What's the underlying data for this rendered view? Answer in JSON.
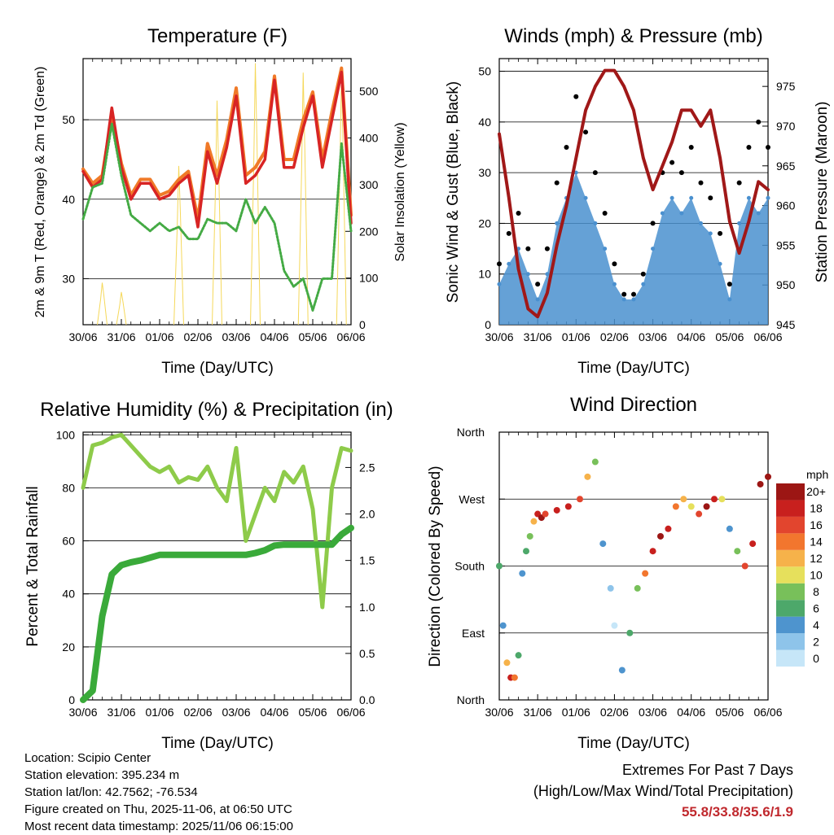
{
  "x_ticks": [
    "30/06",
    "31/06",
    "01/06",
    "02/06",
    "03/06",
    "04/06",
    "05/06",
    "06/06"
  ],
  "x_label": "Time (Day/UTC)",
  "colors": {
    "temp_2m": "#d82424",
    "temp_9m": "#f07a28",
    "dewpoint": "#44aa44",
    "solar": "#f5d85a",
    "wind": "#4a90cf",
    "gust": "#000000",
    "pressure": "#a01818",
    "rh": "#8ecb4a",
    "precip": "#3aaa3a",
    "extremes": "#c0282d"
  },
  "chart_data": [
    {
      "type": "line",
      "title": "Temperature (F)",
      "ylabel": "2m & 9m T (Red, Orange) & 2m Td (Green)",
      "y2label": "Solar Insolation (Yellow)",
      "ylim": [
        24.2,
        57.7
      ],
      "yticks": [
        30,
        40,
        50
      ],
      "y2lim": [
        0,
        570
      ],
      "y2ticks": [
        0,
        100,
        200,
        300,
        400,
        500
      ],
      "x": [
        0,
        0.25,
        0.5,
        0.75,
        1,
        1.25,
        1.5,
        1.75,
        2,
        2.25,
        2.5,
        2.75,
        3,
        3.25,
        3.5,
        3.75,
        4,
        4.25,
        4.5,
        4.75,
        5,
        5.25,
        5.5,
        5.75,
        6,
        6.25,
        6.5,
        6.75,
        7
      ],
      "series": [
        {
          "name": "2m T",
          "axis": "left",
          "values": [
            43.5,
            41.5,
            42.5,
            51.5,
            44,
            40,
            42,
            42,
            40,
            40.5,
            42,
            43,
            36.5,
            46,
            42,
            46.5,
            53,
            42,
            43,
            45,
            55,
            44,
            44,
            49,
            53,
            44,
            50,
            56,
            37
          ]
        },
        {
          "name": "9m T",
          "axis": "left",
          "values": [
            43.8,
            42,
            43,
            50.5,
            44.5,
            40.5,
            42.5,
            42.5,
            40.5,
            41,
            42.5,
            43.5,
            37.5,
            47,
            43,
            47.5,
            54,
            43,
            44,
            46,
            55.5,
            45,
            45,
            50,
            53.5,
            45,
            51,
            56.5,
            38
          ]
        },
        {
          "name": "2m Td",
          "axis": "left",
          "values": [
            37.5,
            41.5,
            42,
            49.5,
            43,
            38,
            37,
            36,
            37,
            36,
            36.5,
            35,
            35,
            37.5,
            37,
            37,
            36,
            40,
            37,
            39,
            37,
            31,
            29,
            30,
            26,
            30,
            30,
            47,
            36
          ]
        },
        {
          "name": "Solar Insolation",
          "axis": "right",
          "values": [
            0,
            0,
            90,
            0,
            70,
            0,
            0,
            0,
            0,
            0,
            340,
            0,
            0,
            0,
            480,
            0,
            0,
            0,
            560,
            0,
            0,
            0,
            0,
            540,
            0,
            0,
            0,
            540,
            0
          ]
        }
      ]
    },
    {
      "type": "line",
      "title": "Winds (mph) & Pressure (mb)",
      "ylabel": "Sonic Wind & Gust (Blue, Black)",
      "y2label": "Station Pressure (Maroon)",
      "ylim": [
        0,
        52.5
      ],
      "yticks": [
        0,
        10,
        20,
        30,
        40,
        50
      ],
      "y2lim": [
        945,
        978.5
      ],
      "y2ticks": [
        945,
        950,
        955,
        960,
        965,
        970,
        975
      ],
      "x": [
        0,
        0.25,
        0.5,
        0.75,
        1,
        1.25,
        1.5,
        1.75,
        2,
        2.25,
        2.5,
        2.75,
        3,
        3.25,
        3.5,
        3.75,
        4,
        4.25,
        4.5,
        4.75,
        5,
        5.25,
        5.5,
        5.75,
        6,
        6.25,
        6.5,
        6.75,
        7
      ],
      "series": [
        {
          "name": "Sonic Wind",
          "axis": "left",
          "values": [
            8,
            12,
            15,
            10,
            5,
            10,
            20,
            25,
            30,
            25,
            20,
            15,
            8,
            5,
            5,
            8,
            15,
            22,
            25,
            22,
            25,
            20,
            18,
            12,
            5,
            20,
            25,
            22,
            25
          ]
        },
        {
          "name": "Gust",
          "axis": "left",
          "values": [
            12,
            18,
            22,
            15,
            8,
            15,
            28,
            35,
            45,
            38,
            30,
            22,
            12,
            6,
            6,
            10,
            20,
            30,
            32,
            30,
            35,
            28,
            25,
            18,
            8,
            28,
            35,
            40,
            35
          ]
        },
        {
          "name": "Station Pressure",
          "axis": "right",
          "values": [
            969,
            961,
            952,
            947,
            946,
            949,
            955,
            960,
            966,
            972,
            975,
            977,
            977,
            975,
            972,
            966,
            962,
            965,
            968,
            972,
            972,
            970,
            972,
            966,
            958,
            954,
            958,
            963,
            962
          ]
        }
      ]
    },
    {
      "type": "line",
      "title": "Relative Humidity (%) & Precipitation (in)",
      "ylabel": "Percent & Total Rainfall",
      "ylim": [
        0,
        101
      ],
      "yticks": [
        0,
        20,
        40,
        60,
        80,
        100
      ],
      "y2lim": [
        0,
        2.88
      ],
      "y2ticks": [
        0.0,
        0.5,
        1.0,
        1.5,
        2.0,
        2.5
      ],
      "x": [
        0,
        0.25,
        0.5,
        0.75,
        1,
        1.25,
        1.5,
        1.75,
        2,
        2.25,
        2.5,
        2.75,
        3,
        3.25,
        3.5,
        3.75,
        4,
        4.25,
        4.5,
        4.75,
        5,
        5.25,
        5.5,
        5.75,
        6,
        6.25,
        6.5,
        6.75,
        7
      ],
      "series": [
        {
          "name": "Relative Humidity",
          "axis": "left",
          "values": [
            80,
            96,
            97,
            99,
            100,
            96,
            92,
            88,
            86,
            88,
            82,
            84,
            83,
            88,
            80,
            75,
            95,
            60,
            70,
            80,
            75,
            86,
            82,
            88,
            72,
            35,
            80,
            95,
            94
          ]
        },
        {
          "name": "Total Precipitation",
          "axis": "right",
          "values": [
            0,
            0.1,
            0.9,
            1.35,
            1.45,
            1.48,
            1.5,
            1.53,
            1.56,
            1.56,
            1.56,
            1.56,
            1.56,
            1.56,
            1.56,
            1.56,
            1.56,
            1.56,
            1.58,
            1.61,
            1.66,
            1.67,
            1.67,
            1.67,
            1.67,
            1.67,
            1.67,
            1.78,
            1.85
          ]
        }
      ]
    },
    {
      "type": "scatter",
      "title": "Wind Direction",
      "ylabel": "Direction (Colored By Speed)",
      "yticks_labels": [
        "North",
        "East",
        "South",
        "West",
        "North"
      ],
      "ylim": [
        0,
        360
      ],
      "colorbar_label": "mph",
      "colorbar_ticks": [
        "0",
        "2",
        "4",
        "6",
        "8",
        "10",
        "12",
        "14",
        "16",
        "18",
        "20+"
      ],
      "colorbar_colors": [
        "#c6e6f8",
        "#8ec4ea",
        "#4e94ce",
        "#4da86a",
        "#78c05a",
        "#e6e05c",
        "#f6b24a",
        "#f2762e",
        "#e2452e",
        "#c8201e",
        "#9c1614"
      ],
      "x": [
        0,
        0.1,
        0.2,
        0.3,
        0.4,
        0.5,
        0.6,
        0.7,
        0.8,
        0.9,
        1.0,
        1.1,
        1.2,
        1.5,
        1.8,
        2.1,
        2.3,
        2.5,
        2.7,
        2.9,
        3.0,
        3.2,
        3.4,
        3.6,
        3.8,
        4.0,
        4.2,
        4.4,
        4.6,
        4.8,
        5.0,
        5.2,
        5.4,
        5.6,
        5.8,
        6.0,
        6.2,
        6.4,
        6.6,
        6.8,
        7.0
      ],
      "series": [
        {
          "name": "Wind Direction",
          "values": [
            180,
            100,
            50,
            30,
            30,
            60,
            170,
            200,
            220,
            240,
            250,
            245,
            250,
            255,
            260,
            270,
            300,
            320,
            210,
            150,
            100,
            40,
            90,
            150,
            170,
            200,
            220,
            230,
            260,
            270,
            260,
            250,
            260,
            270,
            270,
            230,
            200,
            180,
            210,
            290,
            300
          ]
        },
        {
          "name": "Speed",
          "values": [
            6,
            3,
            12,
            18,
            14,
            5,
            4,
            6,
            8,
            12,
            18,
            20,
            16,
            18,
            18,
            16,
            12,
            8,
            4,
            2,
            0,
            4,
            5,
            8,
            14,
            18,
            20,
            18,
            14,
            12,
            10,
            16,
            20,
            18,
            10,
            4,
            8,
            16,
            18,
            20,
            20
          ]
        }
      ]
    }
  ],
  "info": {
    "location": "Location: Scipio Center",
    "elevation": "Station elevation: 395.234 m",
    "latlon": "Station lat/lon: 42.7562; -76.534",
    "created": "Figure created on Thu, 2025-11-06, at 06:50 UTC",
    "recent": "Most recent data timestamp: 2025/11/06 06:15:00"
  },
  "extremes": {
    "title": "Extremes For Past 7 Days",
    "subtitle": "(High/Low/Max Wind/Total Precipitation)",
    "values": "55.8/33.8/35.6/1.9"
  }
}
